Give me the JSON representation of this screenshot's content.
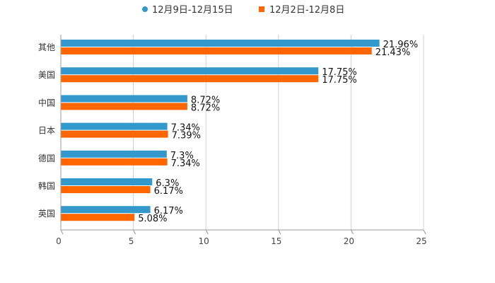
{
  "chart_data": {
    "type": "bar",
    "orientation": "horizontal",
    "title": "",
    "xlabel": "",
    "ylabel": "",
    "xlim": [
      0,
      25
    ],
    "ticks": [
      "0",
      "5",
      "10",
      "15",
      "20",
      "25"
    ],
    "grid": true,
    "legend_position": "top-center",
    "categories": [
      "其他",
      "美国",
      "中国",
      "日本",
      "德国",
      "韩国",
      "英国"
    ],
    "series": [
      {
        "name": "12月9日-12月15日",
        "color": "#3399CC",
        "values": [
          21.96,
          17.75,
          8.72,
          7.34,
          7.3,
          6.3,
          6.17
        ],
        "labels": [
          "21.96%",
          "17.75%",
          "8.72%",
          "7.34%",
          "7.3%",
          "6.3%",
          "6.17%"
        ]
      },
      {
        "name": "12月2日-12月8日",
        "color": "#FF6600",
        "values": [
          21.43,
          17.75,
          8.72,
          7.39,
          7.34,
          6.17,
          5.08
        ],
        "labels": [
          "21.43%",
          "17.75%",
          "8.72%",
          "7.39%",
          "7.34%",
          "6.17%",
          "5.08%"
        ]
      }
    ]
  }
}
